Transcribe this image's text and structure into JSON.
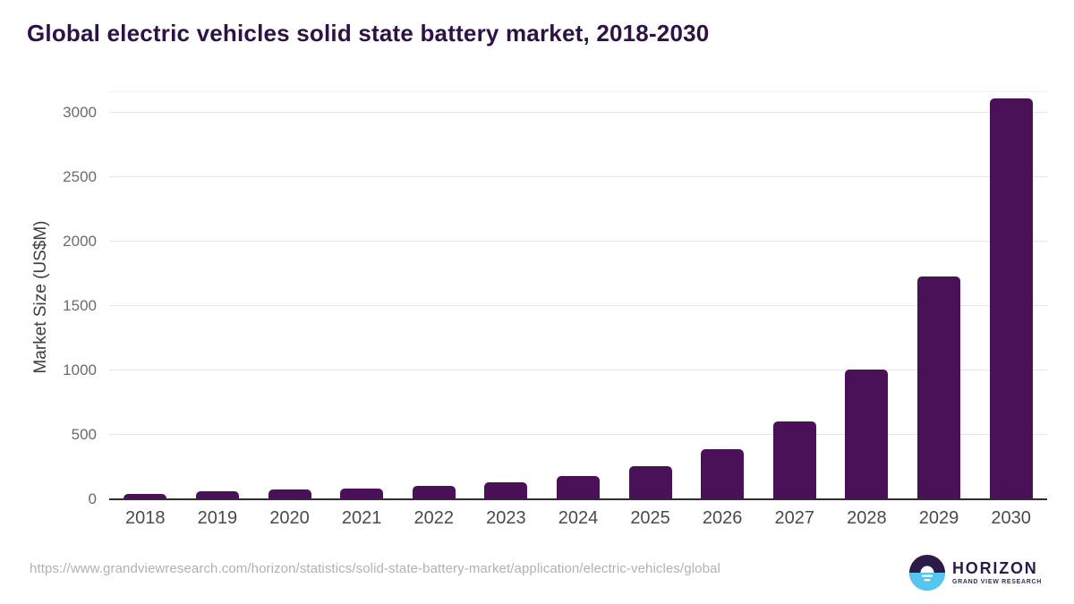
{
  "title": "Global electric vehicles solid state battery market, 2018-2030",
  "chart_data": {
    "type": "bar",
    "title": "Global electric vehicles solid state battery market, 2018-2030",
    "categories": [
      "2018",
      "2019",
      "2020",
      "2021",
      "2022",
      "2023",
      "2024",
      "2025",
      "2026",
      "2027",
      "2028",
      "2029",
      "2030"
    ],
    "values": [
      40,
      60,
      75,
      85,
      105,
      130,
      180,
      255,
      390,
      605,
      1005,
      1730,
      3110
    ],
    "xlabel": "",
    "ylabel": "Market Size (US$M)",
    "yticks": [
      0,
      500,
      1000,
      1500,
      2000,
      2500,
      3000
    ],
    "ylim": [
      0,
      3160
    ],
    "grid": "horizontal",
    "legend": "none",
    "bar_color": "#4a1158"
  },
  "colors": {
    "bar": "#4a1158",
    "title_text": "#2e1245",
    "grid_line": "#e7e7e7",
    "axis_line": "#2f2f2f",
    "x_tick_text": "#4a4a4a",
    "y_tick_text": "#6b6b6b",
    "url_text": "#b1b1b1",
    "logo_purple": "#2e1a47",
    "logo_blue": "#55c6f0"
  },
  "footer": {
    "source_url": "https://www.grandviewresearch.com/horizon/statistics/solid-state-battery-market/application/electric-vehicles/global",
    "brand_name": "HORIZON",
    "brand_subtitle": "GRAND VIEW RESEARCH"
  }
}
